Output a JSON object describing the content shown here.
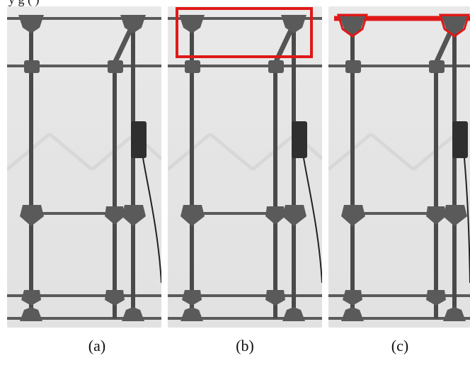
{
  "figure": {
    "top_text": "y                                            g     ( )",
    "panels": [
      {
        "id": "a",
        "caption": "(a)"
      },
      {
        "id": "b",
        "caption": "(b)"
      },
      {
        "id": "c",
        "caption": "(c)"
      }
    ],
    "colors": {
      "background": "#e6e6e6",
      "frame": "#4a4a4a",
      "joint": "#5a5a5a",
      "highlight": "#e01818",
      "sensor": "#2f2f2f"
    }
  }
}
